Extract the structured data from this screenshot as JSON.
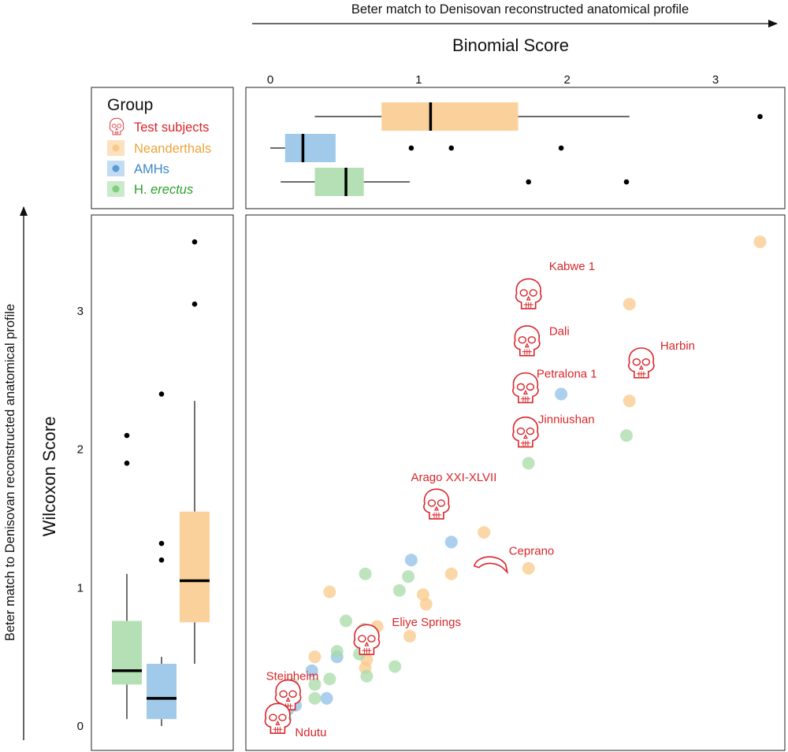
{
  "top_axis_caption": "Beter match to Denisovan reconstructed anatomical profile",
  "left_axis_caption": "Beter match to Denisovan reconstructed anatomical profile",
  "colors": {
    "neanderthal": "#f9c98a",
    "amh": "#8fbfe6",
    "erectus": "#a8dba8",
    "test": "#d9262a",
    "erectus_text": "#2aa02a"
  },
  "legend": {
    "title": "Group",
    "items": [
      {
        "key": "test",
        "label": "Test subjects"
      },
      {
        "key": "neanderthal",
        "label": "Neanderthals"
      },
      {
        "key": "amh",
        "label": "AMHs"
      },
      {
        "key": "erectus",
        "label": "H.",
        "label_italic": "erectus"
      }
    ]
  },
  "chart_data": [
    {
      "type": "boxplot",
      "panel": "top",
      "orientation": "horizontal",
      "title": "Binomial Score",
      "xlabel": "Binomial Score",
      "xlim": [
        -0.15,
        3.35
      ],
      "xticks": [
        0,
        1,
        2,
        3
      ],
      "boxes": [
        {
          "group": "neanderthal",
          "whisker_low": 0.3,
          "q1": 0.75,
          "median": 1.08,
          "q3": 1.67,
          "whisker_high": 2.42,
          "outliers": [
            3.3
          ]
        },
        {
          "group": "amh",
          "whisker_low": 0.0,
          "q1": 0.1,
          "median": 0.22,
          "q3": 0.44,
          "whisker_high": 0.44,
          "outliers": [
            0.95,
            1.22,
            1.96
          ]
        },
        {
          "group": "erectus",
          "whisker_low": 0.07,
          "q1": 0.3,
          "median": 0.51,
          "q3": 0.63,
          "whisker_high": 0.94,
          "outliers": [
            1.74,
            2.4
          ]
        }
      ]
    },
    {
      "type": "boxplot",
      "panel": "left",
      "orientation": "vertical",
      "ylabel": "Wilcoxon Score",
      "ylim": [
        -0.1,
        3.7
      ],
      "yticks": [
        0,
        1,
        2,
        3
      ],
      "boxes": [
        {
          "group": "erectus",
          "whisker_low": 0.05,
          "q1": 0.3,
          "median": 0.4,
          "q3": 0.76,
          "whisker_high": 1.1,
          "outliers": [
            1.9,
            2.1
          ]
        },
        {
          "group": "amh",
          "whisker_low": 0.0,
          "q1": 0.05,
          "median": 0.2,
          "q3": 0.45,
          "whisker_high": 0.5,
          "outliers": [
            1.2,
            1.32,
            2.4
          ]
        },
        {
          "group": "neanderthal",
          "whisker_low": 0.45,
          "q1": 0.75,
          "median": 1.05,
          "q3": 1.55,
          "whisker_high": 2.35,
          "outliers": [
            3.05,
            3.5
          ]
        }
      ]
    },
    {
      "type": "scatter",
      "panel": "main",
      "xlabel": "Binomial Score",
      "ylabel": "Wilcoxon Score",
      "xlim": [
        -0.15,
        3.35
      ],
      "ylim": [
        -0.1,
        3.7
      ],
      "series": [
        {
          "name": "Neanderthals",
          "key": "neanderthal",
          "points": [
            [
              3.3,
              3.5
            ],
            [
              2.42,
              3.05
            ],
            [
              2.42,
              2.35
            ],
            [
              1.44,
              1.4
            ],
            [
              1.74,
              1.14
            ],
            [
              1.22,
              1.1
            ],
            [
              1.1,
              1.6
            ],
            [
              0.4,
              0.97
            ],
            [
              1.03,
              0.95
            ],
            [
              1.05,
              0.88
            ],
            [
              0.72,
              0.72
            ],
            [
              0.94,
              0.65
            ],
            [
              0.3,
              0.5
            ],
            [
              0.65,
              0.48
            ],
            [
              0.64,
              0.42
            ],
            [
              0.1,
              0.1
            ],
            [
              0.1,
              0.05
            ]
          ]
        },
        {
          "name": "AMHs",
          "key": "amh",
          "points": [
            [
              1.96,
              2.4
            ],
            [
              1.22,
              1.33
            ],
            [
              0.95,
              1.2
            ],
            [
              0.45,
              0.5
            ],
            [
              0.28,
              0.4
            ],
            [
              0.38,
              0.2
            ],
            [
              0.17,
              0.15
            ],
            [
              0.12,
              0.12
            ],
            [
              0.08,
              0.1
            ],
            [
              0.1,
              0.05
            ],
            [
              0.05,
              0.0
            ]
          ]
        },
        {
          "name": "H. erectus",
          "key": "erectus",
          "points": [
            [
              2.4,
              2.1
            ],
            [
              1.74,
              1.9
            ],
            [
              0.64,
              1.1
            ],
            [
              0.93,
              1.08
            ],
            [
              0.87,
              0.98
            ],
            [
              0.51,
              0.76
            ],
            [
              0.63,
              0.7
            ],
            [
              0.45,
              0.54
            ],
            [
              0.6,
              0.52
            ],
            [
              0.84,
              0.43
            ],
            [
              0.65,
              0.36
            ],
            [
              0.4,
              0.34
            ],
            [
              0.3,
              0.3
            ],
            [
              0.15,
              0.3
            ],
            [
              0.3,
              0.2
            ],
            [
              0.08,
              0.02
            ],
            [
              0.05,
              0.0
            ]
          ]
        },
        {
          "name": "Test subjects",
          "key": "test",
          "points": [
            {
              "label": "Kabwe 1",
              "x": 1.74,
              "y": 3.12
            },
            {
              "label": "Dali",
              "x": 1.73,
              "y": 2.78
            },
            {
              "label": "Harbin",
              "x": 2.5,
              "y": 2.62
            },
            {
              "label": "Petralona 1",
              "x": 1.72,
              "y": 2.44
            },
            {
              "label": "Jinniushan",
              "x": 1.72,
              "y": 2.12
            },
            {
              "label": "Arago XXI-XLVII",
              "x": 1.12,
              "y": 1.6
            },
            {
              "label": "Ceprano",
              "x": 1.48,
              "y": 1.18
            },
            {
              "label": "Eliye Springs",
              "x": 0.65,
              "y": 0.62
            },
            {
              "label": "Steinheim",
              "x": 0.12,
              "y": 0.22
            },
            {
              "label": "Ndutu",
              "x": 0.05,
              "y": 0.05
            }
          ]
        }
      ]
    }
  ]
}
